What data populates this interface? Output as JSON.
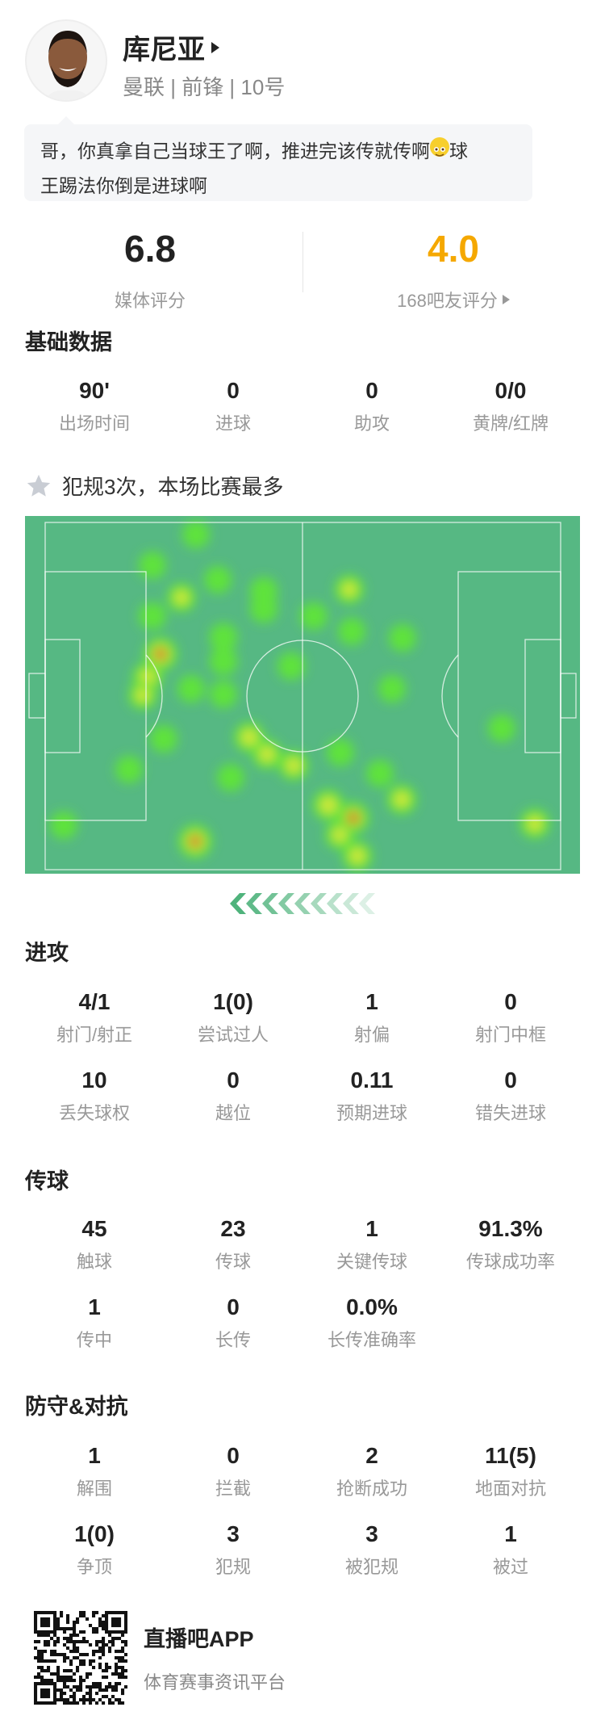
{
  "player": {
    "name": "库尼亚",
    "subtitle": "曼联 | 前锋 | 10号"
  },
  "comment": {
    "line1": "哥，你真拿自己当球王了啊，推进完该传就传啊",
    "emoji": "smile-emoji",
    "line1_end": "球",
    "line2": "王踢法你倒是进球啊"
  },
  "ratings": {
    "media": {
      "value": "6.8",
      "label": "媒体评分"
    },
    "fans": {
      "value": "4.0",
      "label": "168吧友评分",
      "color": "#f5a800"
    }
  },
  "basic": {
    "title": "基础数据",
    "stats": [
      {
        "value": "90'",
        "label": "出场时间"
      },
      {
        "value": "0",
        "label": "进球"
      },
      {
        "value": "0",
        "label": "助攻"
      },
      {
        "value": "0/0",
        "label": "黄牌/红牌"
      }
    ]
  },
  "highlight": {
    "icon": "star-icon",
    "text": "犯规3次，本场比赛最多"
  },
  "heatmap": {
    "pitch_color": "#56b883",
    "direction": "attacking-left"
  },
  "attack": {
    "title": "进攻",
    "stats": [
      {
        "value": "4/1",
        "label": "射门/射正"
      },
      {
        "value": "1(0)",
        "label": "尝试过人"
      },
      {
        "value": "1",
        "label": "射偏"
      },
      {
        "value": "0",
        "label": "射门中框"
      },
      {
        "value": "10",
        "label": "丢失球权"
      },
      {
        "value": "0",
        "label": "越位"
      },
      {
        "value": "0.11",
        "label": "预期进球"
      },
      {
        "value": "0",
        "label": "错失进球"
      }
    ]
  },
  "passing": {
    "title": "传球",
    "stats": [
      {
        "value": "45",
        "label": "触球"
      },
      {
        "value": "23",
        "label": "传球"
      },
      {
        "value": "1",
        "label": "关键传球"
      },
      {
        "value": "91.3%",
        "label": "传球成功率"
      },
      {
        "value": "1",
        "label": "传中"
      },
      {
        "value": "0",
        "label": "长传"
      },
      {
        "value": "0.0%",
        "label": "长传准确率"
      }
    ]
  },
  "defense": {
    "title": "防守&对抗",
    "stats": [
      {
        "value": "1",
        "label": "解围"
      },
      {
        "value": "0",
        "label": "拦截"
      },
      {
        "value": "2",
        "label": "抢断成功"
      },
      {
        "value": "11(5)",
        "label": "地面对抗"
      },
      {
        "value": "1(0)",
        "label": "争顶"
      },
      {
        "value": "3",
        "label": "犯规"
      },
      {
        "value": "3",
        "label": "被犯规"
      },
      {
        "value": "1",
        "label": "被过"
      }
    ]
  },
  "footer": {
    "app_name": "直播吧APP",
    "slogan": "体育赛事资讯平台"
  }
}
